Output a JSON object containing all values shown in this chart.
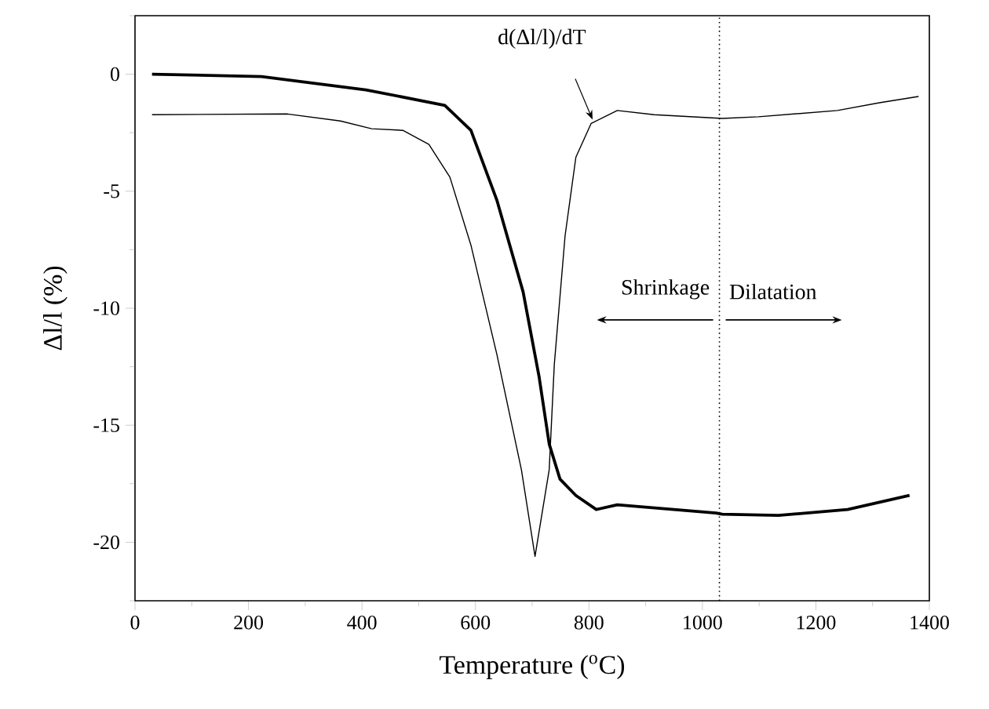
{
  "chart_data": {
    "type": "line",
    "xlabel": "Temperature ($^{o}$C)",
    "ylabel": "Δl/l (%)",
    "xlim": [
      0,
      1400
    ],
    "ylim": [
      -22.5,
      2.5
    ],
    "xticks": [
      0,
      {
        "value": 100,
        "label": null
      },
      200,
      {
        "value": 300,
        "label": null
      },
      400,
      {
        "value": 500,
        "label": null
      },
      600,
      {
        "value": 700,
        "label": null
      },
      800,
      {
        "value": 900,
        "label": null
      },
      1000,
      {
        "value": 1100,
        "label": null
      },
      1200,
      {
        "value": 1300,
        "label": null
      },
      1400
    ],
    "yticks": [
      {
        "value": -22.5,
        "label": null
      },
      -20,
      {
        "value": -17.5,
        "label": null
      },
      -15,
      {
        "value": -12.5,
        "label": null
      },
      -10,
      {
        "value": -7.5,
        "label": null
      },
      -5,
      {
        "value": -2.5,
        "label": null
      },
      0,
      {
        "value": 2.5,
        "label": null
      }
    ],
    "grid": false,
    "marker": "none",
    "series": [
      {
        "color": "#000000",
        "x": [
          30,
          223,
          407,
          546,
          592,
          638,
          684,
          712,
          730,
          749,
          777,
          813,
          850,
          1024,
          1035,
          1134,
          1256,
          1365
        ],
        "values": [
          0,
          -0.1,
          -0.67,
          -1.33,
          -2.4,
          -5.4,
          -9.3,
          -12.9,
          -15.8,
          -17.3,
          -18.0,
          -18.6,
          -18.4,
          -18.75,
          -18.8,
          -18.85,
          -18.6,
          -18.0
        ]
      },
      {
        "color": "#000000",
        "x": [
          30,
          269,
          362,
          417,
          472,
          518,
          555,
          592,
          638,
          681,
          705,
          730,
          739,
          758,
          777,
          804,
          850,
          915,
          1035,
          1099,
          1238,
          1312,
          1381
        ],
        "values": [
          -1.73,
          -1.7,
          -2.0,
          -2.33,
          -2.4,
          -3.0,
          -4.4,
          -7.3,
          -12.0,
          -16.9,
          -20.6,
          -16.9,
          -12.4,
          -6.9,
          -3.55,
          -2.1,
          -1.55,
          -1.73,
          -1.89,
          -1.82,
          -1.55,
          -1.22,
          -0.95
        ]
      }
    ],
    "ref_lines": [
      {
        "axis": "x",
        "value": 1030,
        "line_style": "dotted",
        "color": "#000000"
      }
    ],
    "annotations": [
      "d(Δl/l)/dT",
      "Shrinkage",
      "Dilatation"
    ]
  }
}
